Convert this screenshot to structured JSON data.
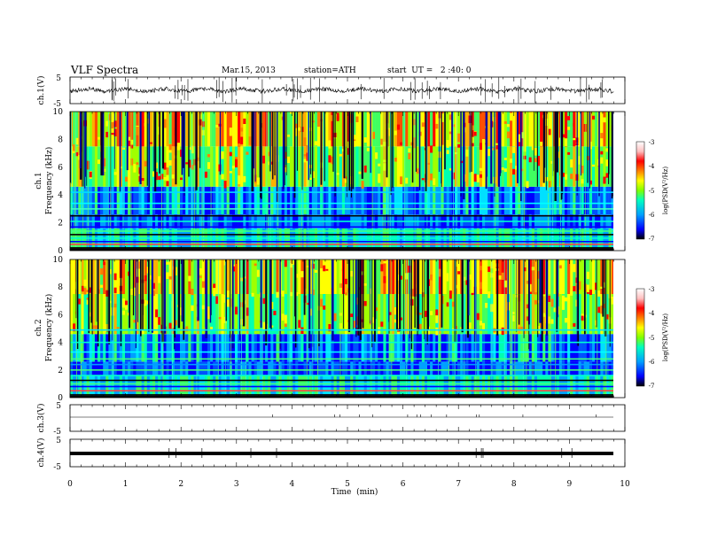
{
  "header": {
    "title": "VLF  Spectra",
    "date": "Mar.15, 2013",
    "station": "station=ATH",
    "start": "start  UT =   2 :40: 0"
  },
  "chart_data": [
    {
      "type": "line",
      "id": "ch1-waveform",
      "ylabel": "ch.1(V)",
      "ylim": [
        -5,
        5
      ],
      "yticks": [
        "5",
        "-5"
      ],
      "xlim": [
        0,
        10
      ]
    },
    {
      "type": "heatmap",
      "id": "ch1-spectrogram",
      "ylabel": "ch.1\nFrequency  (kHz)",
      "ylabel_ch": "ch.1",
      "ylabel_freq": "Frequency  (kHz)",
      "ylim": [
        0,
        10
      ],
      "yticks": [
        "0",
        "2",
        "4",
        "6",
        "8",
        "10"
      ],
      "xlim": [
        0,
        10
      ],
      "data_end_min": 9.8,
      "colorbar": {
        "label": "log(PSD(V²/Hz)",
        "range": [
          -7,
          -3
        ],
        "ticks": [
          "-3",
          "-4",
          "-5",
          "-6",
          "-7"
        ],
        "colors": [
          "#000000",
          "#0000ff",
          "#00a0ff",
          "#00ffc0",
          "#80ff00",
          "#ffff00",
          "#ff8000",
          "#ff0000",
          "#ffc0c0",
          "#ffffff"
        ]
      }
    },
    {
      "type": "heatmap",
      "id": "ch2-spectrogram",
      "ylabel": "ch.2\nFrequency  (kHz)",
      "ylabel_ch": "ch.2",
      "ylabel_freq": "Frequency  (kHz)",
      "ylim": [
        0,
        10
      ],
      "yticks": [
        "0",
        "2",
        "4",
        "6",
        "8",
        "10"
      ],
      "xlim": [
        0,
        10
      ],
      "data_end_min": 9.8,
      "colorbar": {
        "label": "log(PSD(V²/Hz)",
        "range": [
          -7,
          -3
        ],
        "ticks": [
          "-3",
          "-4",
          "-5",
          "-6",
          "-7"
        ]
      }
    },
    {
      "type": "line",
      "id": "ch3-waveform",
      "ylabel": "ch.3(V)",
      "ylim": [
        -5,
        5
      ],
      "yticks": [
        "5",
        "-5"
      ],
      "xlim": [
        0,
        10
      ]
    },
    {
      "type": "line",
      "id": "ch4-waveform",
      "ylabel": "ch.4(V)",
      "ylim": [
        -5,
        5
      ],
      "yticks": [
        "5",
        "-5"
      ],
      "xlim": [
        0,
        10
      ]
    }
  ],
  "xaxis": {
    "label": "Time  (min)",
    "ticks": [
      "0",
      "1",
      "2",
      "3",
      "4",
      "5",
      "6",
      "7",
      "8",
      "9",
      "10"
    ]
  }
}
